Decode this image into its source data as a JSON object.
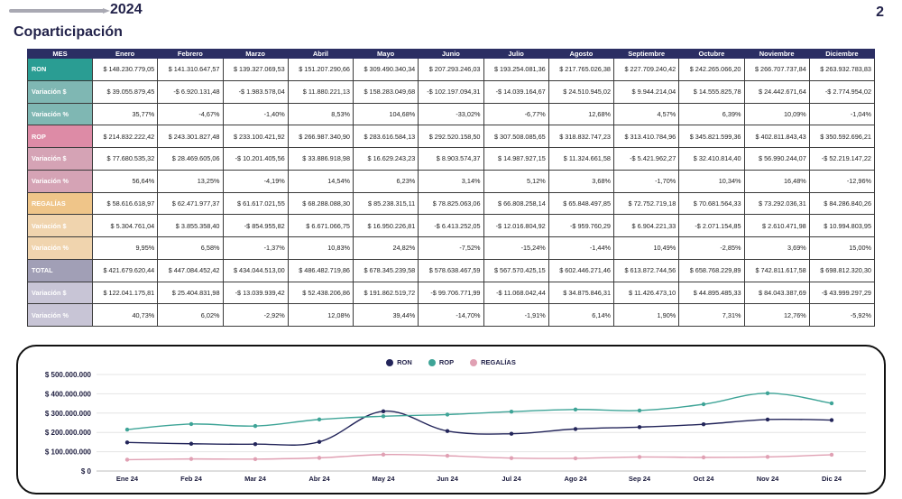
{
  "header": {
    "year": "2024",
    "page_number": "2",
    "title": "Coparticipación"
  },
  "table": {
    "header": [
      "MES",
      "Enero",
      "Febrero",
      "Marzo",
      "Abril",
      "Mayo",
      "Junio",
      "Julio",
      "Agosto",
      "Septiembre",
      "Octubre",
      "Noviembre",
      "Diciembre"
    ],
    "rows": [
      {
        "label": "RON",
        "values": [
          "$ 148.230.779,05",
          "$ 141.310.647,57",
          "$ 139.327.069,53",
          "$ 151.207.290,66",
          "$ 309.490.340,34",
          "$ 207.293.246,03",
          "$ 193.254.081,36",
          "$ 217.765.026,38",
          "$ 227.709.240,42",
          "$ 242.265.066,20",
          "$ 266.707.737,84",
          "$ 263.932.783,83"
        ]
      },
      {
        "label": "Variación $",
        "values": [
          "$ 39.055.879,45",
          "-$ 6.920.131,48",
          "-$ 1.983.578,04",
          "$ 11.880.221,13",
          "$ 158.283.049,68",
          "-$ 102.197.094,31",
          "-$ 14.039.164,67",
          "$ 24.510.945,02",
          "$ 9.944.214,04",
          "$ 14.555.825,78",
          "$ 24.442.671,64",
          "-$ 2.774.954,02"
        ]
      },
      {
        "label": "Variación %",
        "values": [
          "35,77%",
          "-4,67%",
          "-1,40%",
          "8,53%",
          "104,68%",
          "-33,02%",
          "-6,77%",
          "12,68%",
          "4,57%",
          "6,39%",
          "10,09%",
          "-1,04%"
        ]
      },
      {
        "label": "ROP",
        "values": [
          "$ 214.832.222,42",
          "$ 243.301.827,48",
          "$ 233.100.421,92",
          "$ 266.987.340,90",
          "$ 283.616.584,13",
          "$ 292.520.158,50",
          "$ 307.508.085,65",
          "$ 318.832.747,23",
          "$ 313.410.784,96",
          "$ 345.821.599,36",
          "$ 402.811.843,43",
          "$ 350.592.696,21"
        ]
      },
      {
        "label": "Variación $",
        "values": [
          "$ 77.680.535,32",
          "$ 28.469.605,06",
          "-$ 10.201.405,56",
          "$ 33.886.918,98",
          "$ 16.629.243,23",
          "$ 8.903.574,37",
          "$ 14.987.927,15",
          "$ 11.324.661,58",
          "-$ 5.421.962,27",
          "$ 32.410.814,40",
          "$ 56.990.244,07",
          "-$ 52.219.147,22"
        ]
      },
      {
        "label": "Variación %",
        "values": [
          "56,64%",
          "13,25%",
          "-4,19%",
          "14,54%",
          "6,23%",
          "3,14%",
          "5,12%",
          "3,68%",
          "-1,70%",
          "10,34%",
          "16,48%",
          "-12,96%"
        ]
      },
      {
        "label": "REGALÍAS",
        "values": [
          "$ 58.616.618,97",
          "$ 62.471.977,37",
          "$ 61.617.021,55",
          "$ 68.288.088,30",
          "$ 85.238.315,11",
          "$ 78.825.063,06",
          "$ 66.808.258,14",
          "$ 65.848.497,85",
          "$ 72.752.719,18",
          "$ 70.681.564,33",
          "$ 73.292.036,31",
          "$ 84.286.840,26"
        ]
      },
      {
        "label": "Variación $",
        "values": [
          "$ 5.304.761,04",
          "$ 3.855.358,40",
          "-$ 854.955,82",
          "$ 6.671.066,75",
          "$ 16.950.226,81",
          "-$ 6.413.252,05",
          "-$ 12.016.804,92",
          "-$ 959.760,29",
          "$ 6.904.221,33",
          "-$ 2.071.154,85",
          "$ 2.610.471,98",
          "$ 10.994.803,95"
        ]
      },
      {
        "label": "Variación %",
        "values": [
          "9,95%",
          "6,58%",
          "-1,37%",
          "10,83%",
          "24,82%",
          "-7,52%",
          "-15,24%",
          "-1,44%",
          "10,49%",
          "-2,85%",
          "3,69%",
          "15,00%"
        ]
      },
      {
        "label": "TOTAL",
        "values": [
          "$ 421.679.620,44",
          "$ 447.084.452,42",
          "$ 434.044.513,00",
          "$ 486.482.719,86",
          "$ 678.345.239,58",
          "$ 578.638.467,59",
          "$ 567.570.425,15",
          "$ 602.446.271,46",
          "$ 613.872.744,56",
          "$ 658.768.229,89",
          "$ 742.811.617,58",
          "$ 698.812.320,30"
        ]
      },
      {
        "label": "Variación $",
        "values": [
          "$ 122.041.175,81",
          "$ 25.404.831,98",
          "-$ 13.039.939,42",
          "$ 52.438.206,86",
          "$ 191.862.519,72",
          "-$ 99.706.771,99",
          "-$ 11.068.042,44",
          "$ 34.875.846,31",
          "$ 11.426.473,10",
          "$ 44.895.485,33",
          "$ 84.043.387,69",
          "-$ 43.999.297,29"
        ]
      },
      {
        "label": "Variación %",
        "values": [
          "40,73%",
          "6,02%",
          "-2,92%",
          "12,08%",
          "39,44%",
          "-14,70%",
          "-1,91%",
          "6,14%",
          "1,90%",
          "7,31%",
          "12,76%",
          "-5,92%"
        ]
      }
    ]
  },
  "chart_data": {
    "type": "line",
    "categories": [
      "Ene 24",
      "Feb 24",
      "Mar 24",
      "Abr 24",
      "May 24",
      "Jun 24",
      "Jul 24",
      "Ago 24",
      "Sep 24",
      "Oct 24",
      "Nov 24",
      "Dic 24"
    ],
    "series": [
      {
        "name": "RON",
        "color": "#23255a",
        "values": [
          148230779.05,
          141310647.57,
          139327069.53,
          151207290.66,
          309490340.34,
          207293246.03,
          193254081.36,
          217765026.38,
          227709240.42,
          242265066.2,
          266707737.84,
          263932783.83
        ]
      },
      {
        "name": "ROP",
        "color": "#3ea497",
        "values": [
          214832222.42,
          243301827.48,
          233100421.92,
          266987340.9,
          283616584.13,
          292520158.5,
          307508085.65,
          318832747.23,
          313410784.96,
          345821599.36,
          402811843.43,
          350592696.21
        ]
      },
      {
        "name": "REGALÍAS",
        "color": "#e0a0b3",
        "values": [
          58616618.97,
          62471977.37,
          61617021.55,
          68288088.3,
          85238315.11,
          78825063.06,
          66808258.14,
          65848497.85,
          72752719.18,
          70681564.33,
          73292036.31,
          84286840.26
        ]
      }
    ],
    "yticks": [
      "$ 0",
      "$ 100.000.000",
      "$ 200.000.000",
      "$ 300.000.000",
      "$ 400.000.000",
      "$ 500.000.000"
    ],
    "ylim": [
      0,
      500000000
    ],
    "grid": true,
    "legend": "top-center"
  }
}
